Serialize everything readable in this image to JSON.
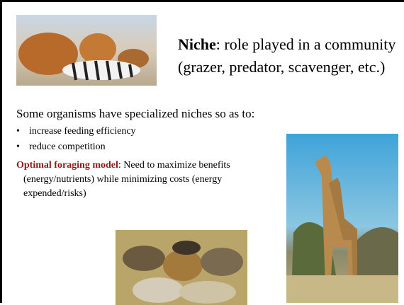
{
  "heading": {
    "term": "Niche",
    "definition": ": role played in a community (grazer, predator, scavenger, etc.)"
  },
  "intro": "Some organisms have specialized niches so as to:",
  "bullets": [
    "increase feeding efficiency",
    "reduce competition"
  ],
  "model": {
    "term": "Optimal foraging model",
    "definition": ": Need to maximize benefits (energy/nutrients) while minimizing costs (energy expended/risks)"
  }
}
